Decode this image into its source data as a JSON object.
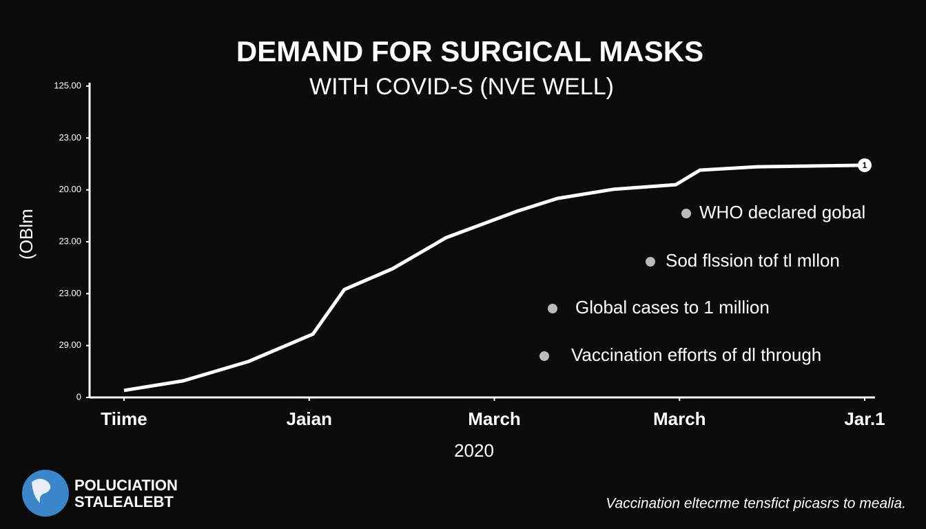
{
  "chart_data": {
    "type": "line",
    "title": "DEMAND FOR SURGICAL MASKS",
    "subtitle": "WITH COVID-S (NVE WELL)",
    "y_label": "(OBlm",
    "x_label": "2020",
    "x": [
      0,
      0.32,
      0.67,
      1.02,
      1.19,
      1.45,
      1.74,
      2.12,
      2.34,
      2.64,
      2.98,
      3.11,
      3.42,
      4
    ],
    "series": [
      {
        "name": "Demand",
        "color": "#ffffff",
        "values": [
          2.7,
          6.4,
          13.8,
          24.4,
          41.6,
          49.6,
          61.6,
          71.7,
          76.7,
          80.2,
          82.0,
          87.6,
          88.9,
          89.5
        ]
      }
    ],
    "xlim": [
      0,
      4
    ],
    "xticks": [
      {
        "value": 0,
        "label": "Tiime"
      },
      {
        "value": 1,
        "label": "Jaian"
      },
      {
        "value": 2,
        "label": "March"
      },
      {
        "value": 3,
        "label": "March"
      },
      {
        "value": 4,
        "label": "Jar.1"
      }
    ],
    "ylim": [
      0,
      120
    ],
    "yticks": [
      0,
      {
        "value": 20,
        "label": "29.00"
      },
      {
        "value": 40,
        "label": "23.00"
      },
      {
        "value": 60,
        "label": "23.00"
      },
      {
        "value": 80,
        "label": "20.00"
      },
      {
        "value": 100,
        "label": "23.00"
      },
      {
        "value": 120,
        "label": "125.00"
      }
    ],
    "end_marker_label": "1",
    "annotations": [
      "WHO declared gobal",
      "Sod flssion tof tl mllon",
      "Global cases to 1 million",
      "Vaccination efforts of dl through"
    ],
    "logo_text": [
      "POLUCIATION",
      "STALEALEBT"
    ],
    "footer": "Vaccination eltecrme tensfict picasrs to mealia."
  }
}
